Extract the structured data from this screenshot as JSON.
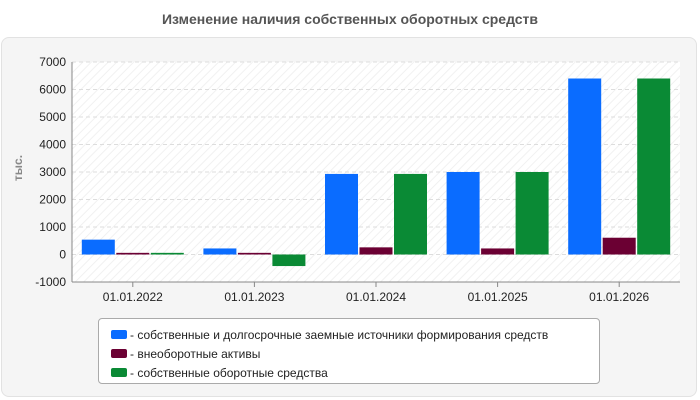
{
  "chart_data": {
    "type": "bar",
    "title": "Изменение наличия собственных оборотных средств",
    "ylabel": "тыс.",
    "xlabel": "",
    "categories": [
      "01.01.2022",
      "01.01.2023",
      "01.01.2024",
      "01.01.2025",
      "01.01.2026"
    ],
    "ylim": [
      -1000,
      7000
    ],
    "yticks": [
      -1000,
      0,
      1000,
      2000,
      3000,
      4000,
      5000,
      6000,
      7000
    ],
    "grid": true,
    "legend_position": "bottom",
    "series": [
      {
        "name": "собственные и долгосрочные заемные источники формирования средств",
        "color": "#0a6cff",
        "values": [
          540,
          220,
          2930,
          3000,
          6400
        ]
      },
      {
        "name": "внеоборотные активы",
        "color": "#6b0033",
        "values": [
          60,
          60,
          260,
          220,
          610
        ]
      },
      {
        "name": "собственные оборотные средства",
        "color": "#0a8a35",
        "values": [
          60,
          -420,
          2930,
          3000,
          6400
        ]
      }
    ]
  }
}
